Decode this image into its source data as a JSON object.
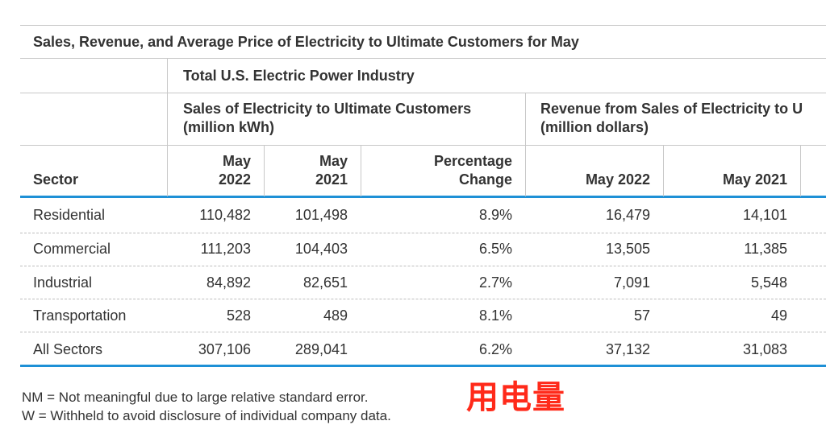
{
  "table": {
    "title": "Sales, Revenue, and Average Price of Electricity to Ultimate Customers for May",
    "group_header": "Total U.S. Electric Power Industry",
    "sales_header_line1": "Sales of Electricity to Ultimate Customers",
    "sales_header_line2": "(million kWh)",
    "revenue_header_line1": "Revenue from Sales of Electricity to U",
    "revenue_header_line2": "(million dollars)",
    "col_sector": "Sector",
    "col_may2022_l1": "May",
    "col_may2022_l2": "2022",
    "col_may2021_l1": "May",
    "col_may2021_l2": "2021",
    "col_pct_l1": "Percentage",
    "col_pct_l2": "Change",
    "col_rev2022": "May 2022",
    "col_rev2021": "May 2021",
    "rows": [
      {
        "sector": "Residential",
        "may2022": "110,482",
        "may2021": "101,498",
        "pct": "8.9%",
        "rev2022": "16,479",
        "rev2021": "14,101"
      },
      {
        "sector": "Commercial",
        "may2022": "111,203",
        "may2021": "104,403",
        "pct": "6.5%",
        "rev2022": "13,505",
        "rev2021": "11,385"
      },
      {
        "sector": "Industrial",
        "may2022": "84,892",
        "may2021": "82,651",
        "pct": "2.7%",
        "rev2022": "7,091",
        "rev2021": "5,548"
      },
      {
        "sector": "Transportation",
        "may2022": "528",
        "may2021": "489",
        "pct": "8.1%",
        "rev2022": "57",
        "rev2021": "49"
      },
      {
        "sector": "All Sectors",
        "may2022": "307,106",
        "may2021": "289,041",
        "pct": "6.2%",
        "rev2022": "37,132",
        "rev2021": "31,083"
      }
    ]
  },
  "notes": {
    "nm": "NM = Not meaningful due to large relative standard error.",
    "w": "W = Withheld to avoid disclosure of individual company data."
  },
  "annotation": {
    "text": "用电量",
    "color": "#ff2a1a"
  },
  "colors": {
    "accent_rule": "#1e90d6"
  }
}
